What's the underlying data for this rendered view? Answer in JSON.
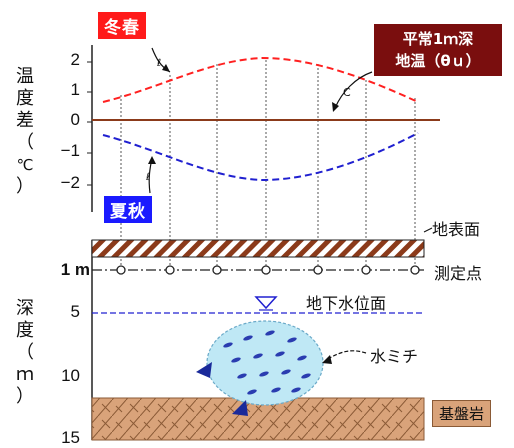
{
  "labels": {
    "winter_spring": "冬春",
    "summer_autumn": "夏秋",
    "normal_temp_line1": "平常1ｍ深",
    "normal_temp_line2": "地温（θｕ）",
    "ground_surface": "地表面",
    "measurement_points": "測定点",
    "groundwater_level": "地下水位面",
    "water_path": "水ミチ",
    "bedrock": "基盤岩"
  },
  "temperature_axis": {
    "label_chars": [
      "温",
      "度",
      "差",
      "（",
      "℃",
      "）"
    ],
    "ticks": [
      "2",
      "1",
      "0",
      "−1",
      "−2"
    ]
  },
  "depth_axis": {
    "label_chars": [
      "深",
      "度",
      "（",
      "ｍ",
      "）"
    ],
    "ticks": [
      "1 m",
      "5",
      "10",
      "15"
    ]
  },
  "colors": {
    "winter_curve": "#ff2020",
    "summer_curve": "#2020d0",
    "baseline": "#8b3a1a",
    "soil_hatch": "#8b3a1a",
    "water_blob": "#bfe8f5",
    "bedrock": "#d9a37a"
  },
  "measurement_point_count": 7
}
